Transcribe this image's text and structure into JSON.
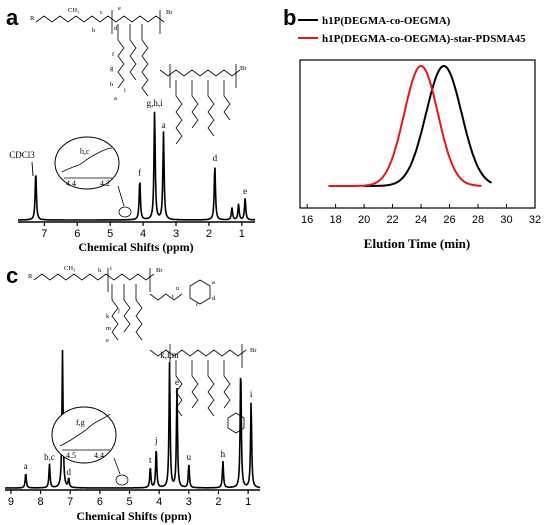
{
  "chart_data": [
    {
      "panel": "a",
      "type": "line",
      "xlabel": "Chemical Shifts (ppm)",
      "xlim": [
        7.8,
        0.6
      ],
      "xticks": [
        "7",
        "6",
        "5",
        "4",
        "3",
        "2",
        "1"
      ],
      "peaks": [
        {
          "x": 7.26,
          "label": "CDCl3",
          "height": 0.4
        },
        {
          "x": 4.1,
          "label": "f",
          "height": 0.33
        },
        {
          "x": 3.65,
          "label": "g,h,i",
          "height": 0.9
        },
        {
          "x": 3.38,
          "label": "a",
          "height": 0.72
        },
        {
          "x": 1.82,
          "label": "d",
          "height": 0.45
        },
        {
          "x": 1.3,
          "label": "",
          "height": 0.1
        },
        {
          "x": 1.1,
          "label": "",
          "height": 0.13
        },
        {
          "x": 0.9,
          "label": "e",
          "height": 0.18
        }
      ],
      "inset": {
        "label": "b,c",
        "xticks": [
          "4.4",
          "4.2"
        ]
      }
    },
    {
      "panel": "b",
      "type": "line",
      "xlabel": "Elution Time (min)",
      "xlim": [
        15.5,
        32
      ],
      "xticks": [
        "16",
        "18",
        "20",
        "22",
        "24",
        "26",
        "28",
        "30",
        "32"
      ],
      "legend": [
        "h1P(DEGMA-co-OEGMA)",
        "h1P(DEGMA-co-OEGMA)-star-PDSMA45"
      ],
      "series": [
        {
          "name": "h1P(DEGMA-co-OEGMA)",
          "color": "#000000",
          "center": 25.6,
          "width": 1.85,
          "start": 20.0,
          "end": 29.0
        },
        {
          "name": "h1P(DEGMA-co-OEGMA)-star-PDSMA45",
          "color": "#e8141a",
          "center": 24.0,
          "width": 1.75,
          "start": 17.5,
          "end": 28.3
        }
      ]
    },
    {
      "panel": "c",
      "type": "line",
      "xlabel": "Chemical Shifts (ppm)",
      "xlim": [
        9.2,
        0.6
      ],
      "xticks": [
        "9",
        "8",
        "7",
        "6",
        "5",
        "4",
        "3",
        "2",
        "1"
      ],
      "peaks": [
        {
          "x": 8.5,
          "label": "a",
          "height": 0.1
        },
        {
          "x": 7.7,
          "label": "b,c",
          "height": 0.16
        },
        {
          "x": 7.26,
          "label": "",
          "height": 0.92
        },
        {
          "x": 7.05,
          "label": "d",
          "height": 0.06
        },
        {
          "x": 4.3,
          "label": "t",
          "height": 0.14
        },
        {
          "x": 4.1,
          "label": "j",
          "height": 0.27
        },
        {
          "x": 3.65,
          "label": "k,l,m",
          "height": 0.84
        },
        {
          "x": 3.4,
          "label": "e",
          "height": 0.66
        },
        {
          "x": 3.0,
          "label": "u",
          "height": 0.16
        },
        {
          "x": 1.85,
          "label": "h",
          "height": 0.18
        },
        {
          "x": 1.25,
          "label": "",
          "height": 0.82
        },
        {
          "x": 0.9,
          "label": "i",
          "height": 0.58
        }
      ],
      "inset": {
        "label": "f,g",
        "xticks": [
          "4.5",
          "4.4"
        ]
      }
    }
  ]
}
